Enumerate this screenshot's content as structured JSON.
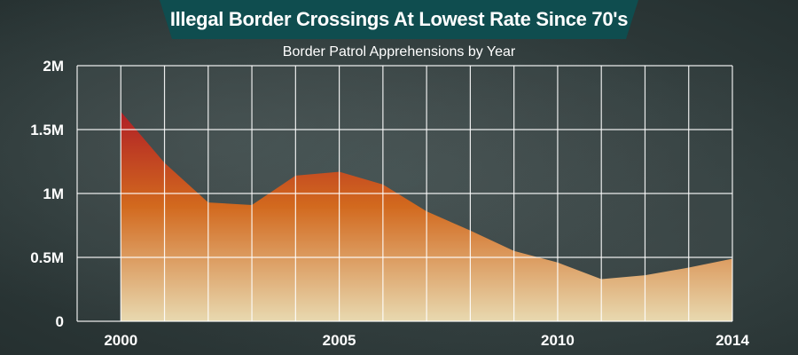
{
  "banner": {
    "title": "Illegal Border Crossings At Lowest Rate Since 70's",
    "color": "#0f4d4f"
  },
  "chart_data": {
    "type": "area",
    "title": "Illegal Border Crossings At Lowest Rate Since 70's",
    "subtitle": "Border Patrol Apprehensions by Year",
    "xlabel": "",
    "ylabel": "",
    "x": [
      2000,
      2001,
      2002,
      2003,
      2004,
      2005,
      2006,
      2007,
      2008,
      2009,
      2010,
      2011,
      2012,
      2013,
      2014
    ],
    "series": [
      {
        "values": [
          1640000,
          1240000,
          930000,
          910000,
          1140000,
          1170000,
          1070000,
          860000,
          710000,
          550000,
          460000,
          330000,
          360000,
          420000,
          490000
        ]
      }
    ],
    "xlim": [
      1999,
      2014
    ],
    "ylim": [
      0,
      2000000
    ],
    "x_tick_labels": [
      {
        "x": 2000,
        "label": "2000"
      },
      {
        "x": 2005,
        "label": "2005"
      },
      {
        "x": 2010,
        "label": "2010"
      },
      {
        "x": 2014,
        "label": "2014"
      }
    ],
    "y_tick_labels": [
      {
        "y": 0,
        "label": "0"
      },
      {
        "y": 500000,
        "label": "0.5M"
      },
      {
        "y": 1000000,
        "label": "1M"
      },
      {
        "y": 1500000,
        "label": "1.5M"
      },
      {
        "y": 2000000,
        "label": "2M"
      }
    ],
    "grid": true,
    "colors": {
      "top": "#b01f26",
      "mid": "#d2691e",
      "bottom": "#e8d9b0",
      "grid": "#ffffff"
    }
  }
}
